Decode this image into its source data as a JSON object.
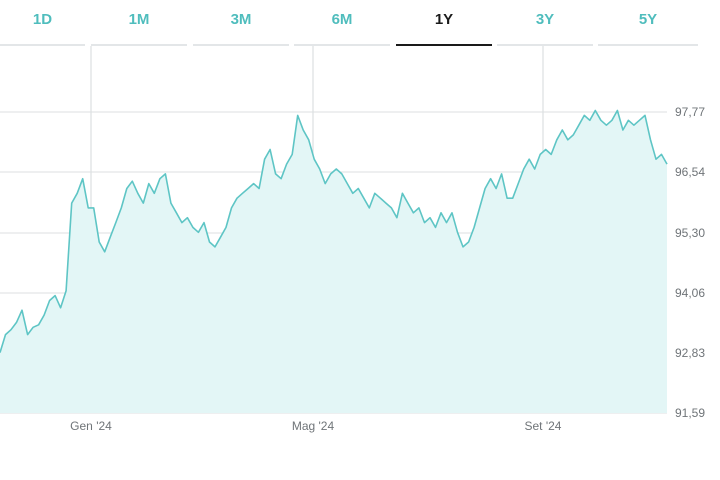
{
  "tabs": [
    {
      "label": "1D",
      "active": false
    },
    {
      "label": "1M",
      "active": false
    },
    {
      "label": "3M",
      "active": false
    },
    {
      "label": "6M",
      "active": false
    },
    {
      "label": "1Y",
      "active": true
    },
    {
      "label": "3Y",
      "active": false
    },
    {
      "label": "5Y",
      "active": false
    }
  ],
  "colors": {
    "accent": "#4fbdbd",
    "line": "#5ec5c5",
    "area": "#e3f6f6",
    "grid": "#dcdfe1",
    "active_tab": "#1a1a1a"
  },
  "chart_data": {
    "type": "area",
    "title": "",
    "xlabel": "",
    "ylabel": "",
    "y_ticks": [
      "97,77",
      "96,54",
      "95,30",
      "94,06",
      "92,83",
      "91,59"
    ],
    "x_ticks": [
      "Gen '24",
      "Mag '24",
      "Set '24"
    ],
    "ylim": [
      91.59,
      98.8
    ],
    "grid": true,
    "series": [
      {
        "values": [
          92.83,
          93.2,
          93.3,
          93.45,
          93.7,
          93.2,
          93.35,
          93.4,
          93.6,
          93.9,
          94.0,
          93.75,
          94.1,
          95.9,
          96.1,
          96.4,
          95.8,
          95.8,
          95.1,
          94.9,
          95.2,
          95.5,
          95.8,
          96.2,
          96.35,
          96.1,
          95.9,
          96.3,
          96.1,
          96.4,
          96.5,
          95.9,
          95.7,
          95.5,
          95.6,
          95.4,
          95.3,
          95.5,
          95.1,
          95.0,
          95.2,
          95.4,
          95.8,
          96.0,
          96.1,
          96.2,
          96.3,
          96.2,
          96.8,
          97.0,
          96.5,
          96.4,
          96.7,
          96.9,
          97.7,
          97.4,
          97.2,
          96.8,
          96.6,
          96.3,
          96.5,
          96.6,
          96.5,
          96.3,
          96.1,
          96.2,
          96.0,
          95.8,
          96.1,
          96.0,
          95.9,
          95.8,
          95.6,
          96.1,
          95.9,
          95.7,
          95.8,
          95.5,
          95.6,
          95.4,
          95.7,
          95.5,
          95.7,
          95.3,
          95.0,
          95.1,
          95.4,
          95.8,
          96.2,
          96.4,
          96.2,
          96.5,
          96.0,
          96.0,
          96.3,
          96.6,
          96.8,
          96.6,
          96.9,
          97.0,
          96.9,
          97.2,
          97.4,
          97.2,
          97.3,
          97.5,
          97.7,
          97.6,
          97.8,
          97.6,
          97.5,
          97.6,
          97.8,
          97.4,
          97.6,
          97.5,
          97.6,
          97.7,
          97.2,
          96.8,
          96.9,
          96.7
        ]
      }
    ]
  }
}
